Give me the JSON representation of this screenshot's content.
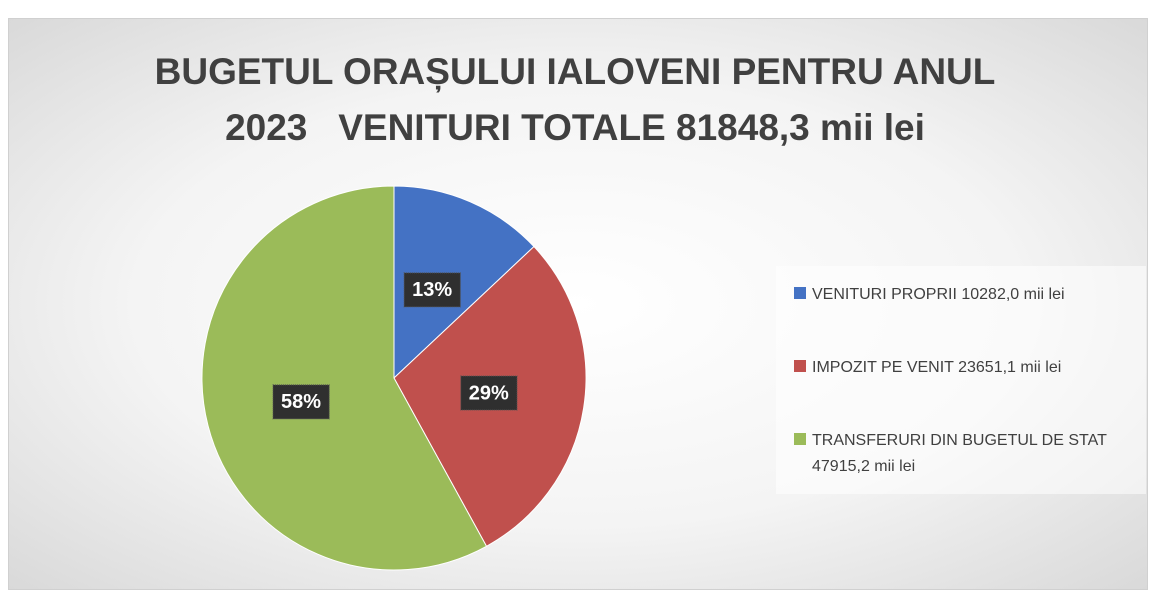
{
  "chart_data": {
    "type": "pie",
    "title": "BUGETUL ORAȘULUI IALOVENI PENTRU ANUL 2023   VENITURI TOTALE 81848,3 mii lei",
    "categories": [
      "VENITURI PROPRII 10282,0 mii lei",
      "IMPOZIT PE VENIT 23651,1 mii lei",
      "TRANSFERURI DIN BUGETUL DE STAT 47915,2 mii lei"
    ],
    "values": [
      13,
      29,
      58
    ],
    "value_labels": [
      "13%",
      "29%",
      "58%"
    ],
    "colors": [
      "#4472c4",
      "#c0504d",
      "#9bbb59"
    ],
    "legend": "right"
  }
}
